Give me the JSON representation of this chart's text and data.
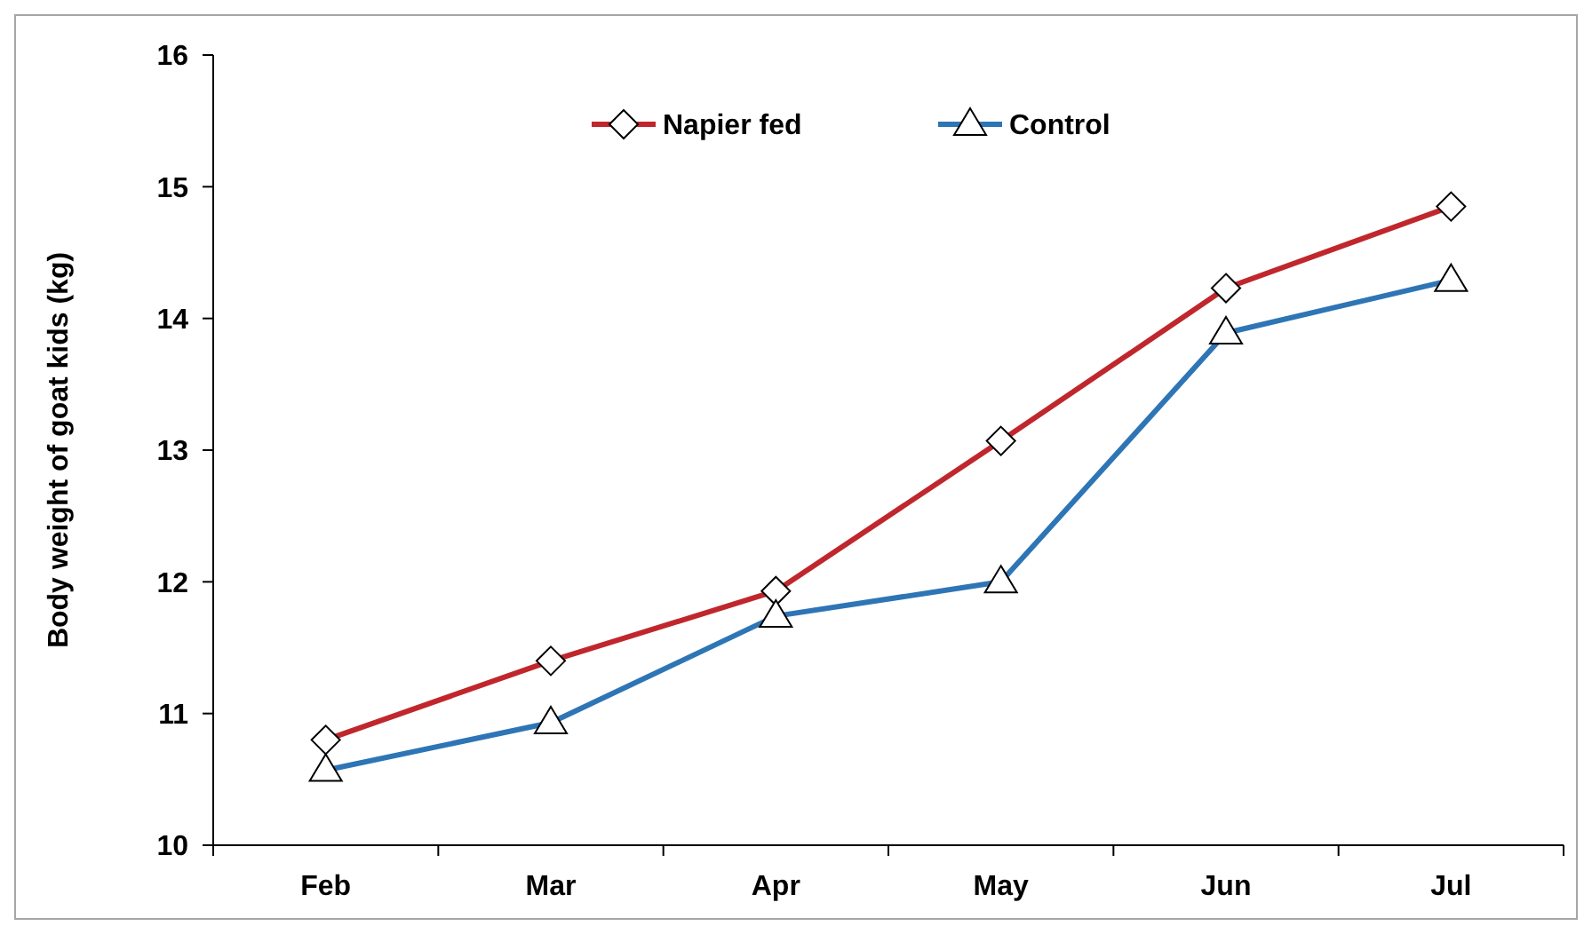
{
  "chart_data": {
    "type": "line",
    "ylabel": "Body weight of goat kids (kg)",
    "categories": [
      "Feb",
      "Mar",
      "Apr",
      "May",
      "Jun",
      "Jul"
    ],
    "series": [
      {
        "name": "Napier fed",
        "color": "#c0272d",
        "marker": "diamond",
        "values": [
          10.8,
          11.4,
          11.93,
          13.07,
          14.23,
          14.85
        ]
      },
      {
        "name": "Control",
        "color": "#2e75b6",
        "marker": "triangle",
        "values": [
          10.57,
          10.93,
          11.74,
          12.0,
          13.89,
          14.29
        ]
      }
    ],
    "ylim": [
      10,
      16
    ],
    "yticks": [
      10,
      11,
      12,
      13,
      14,
      15,
      16
    ],
    "grid": false,
    "legend": "top",
    "line_style": "solid"
  }
}
